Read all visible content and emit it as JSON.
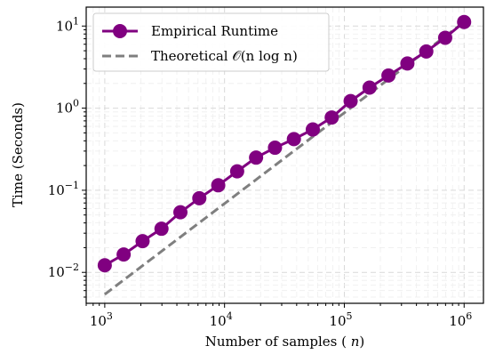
{
  "chart_data": {
    "type": "line",
    "xscale": "log",
    "yscale": "log",
    "xlim": [
      700,
      1450000
    ],
    "ylim": [
      0.0042,
      17
    ],
    "xticks": [
      {
        "value": 1000,
        "base": "10",
        "exp": "3"
      },
      {
        "value": 10000,
        "base": "10",
        "exp": "4"
      },
      {
        "value": 100000,
        "base": "10",
        "exp": "5"
      },
      {
        "value": 1000000,
        "base": "10",
        "exp": "6"
      }
    ],
    "yticks": [
      {
        "value": 0.01,
        "base": "10",
        "exp": "−2"
      },
      {
        "value": 0.1,
        "base": "10",
        "exp": "−1"
      },
      {
        "value": 1,
        "base": "10",
        "exp": "0"
      },
      {
        "value": 10,
        "base": "10",
        "exp": "1"
      }
    ],
    "xlabel": "Number of samples (n)",
    "ylabel": "Time (Seconds)",
    "grid": true,
    "legend_position": "top-left",
    "series": [
      {
        "name": "Empirical Runtime",
        "color": "#800080",
        "style": "solid-with-circle-markers",
        "x": [
          1000,
          1438,
          2069,
          2976,
          4281,
          6158,
          8859,
          12743,
          18330,
          26367,
          37927,
          54556,
          78476,
          112884,
          162378,
          233572,
          335982,
          483293,
          695193,
          1000000
        ],
        "y": [
          0.0122,
          0.0165,
          0.024,
          0.034,
          0.054,
          0.08,
          0.115,
          0.17,
          0.25,
          0.33,
          0.42,
          0.55,
          0.77,
          1.22,
          1.78,
          2.5,
          3.5,
          4.9,
          7.2,
          11.2
        ]
      },
      {
        "name": "Theoretical O(n log n)",
        "color": "#7f7f7f",
        "style": "dashed",
        "x": [
          1000,
          1000000
        ],
        "y": [
          0.0054,
          11.2
        ]
      }
    ],
    "legend": {
      "entries": [
        {
          "label": "Empirical Runtime"
        },
        {
          "label_prefix": "Theoretical ",
          "label_math": "𝒪(n log n)"
        }
      ]
    }
  }
}
